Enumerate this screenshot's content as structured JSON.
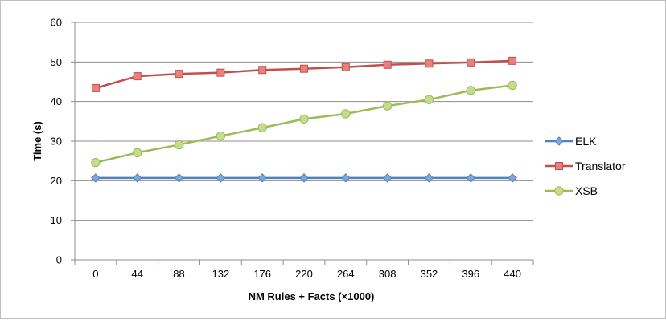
{
  "chart_data": {
    "type": "line",
    "title": "",
    "xlabel": "NM Rules + Facts (×1000)",
    "ylabel": "Time (s)",
    "categories": [
      "0",
      "44",
      "88",
      "132",
      "176",
      "220",
      "264",
      "308",
      "352",
      "396",
      "440"
    ],
    "ylim": [
      0,
      60
    ],
    "yticks": [
      "0",
      "10",
      "20",
      "30",
      "40",
      "50",
      "60"
    ],
    "grid": true,
    "legend_position": "right",
    "series": [
      {
        "name": "ELK",
        "color": "#4f81bd",
        "fill": "#7fa6d6",
        "marker": "diamond",
        "values": [
          20.7,
          20.7,
          20.7,
          20.7,
          20.7,
          20.7,
          20.7,
          20.7,
          20.7,
          20.7,
          20.7
        ]
      },
      {
        "name": "Translator",
        "color": "#c0504d",
        "fill": "#e8807d",
        "marker": "square",
        "values": [
          43.4,
          46.4,
          47.0,
          47.3,
          48.0,
          48.3,
          48.7,
          49.3,
          49.6,
          49.9,
          50.3
        ]
      },
      {
        "name": "XSB",
        "color": "#9bbb59",
        "fill": "#c5dc8c",
        "marker": "circle",
        "values": [
          24.6,
          27.1,
          29.1,
          31.3,
          33.4,
          35.6,
          36.9,
          38.9,
          40.5,
          42.8,
          44.1
        ]
      }
    ]
  }
}
